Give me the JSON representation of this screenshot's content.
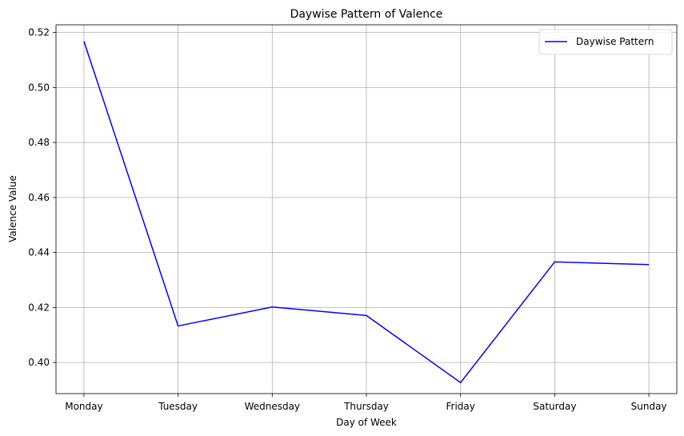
{
  "chart_data": {
    "type": "line",
    "title": "Daywise Pattern of Valence",
    "xlabel": "Day of Week",
    "ylabel": "Valence Value",
    "categories": [
      "Monday",
      "Tuesday",
      "Wednesday",
      "Thursday",
      "Friday",
      "Saturday",
      "Sunday"
    ],
    "series": [
      {
        "name": "Daywise Pattern",
        "color": "#0000ff",
        "values": [
          0.5168,
          0.4133,
          0.4202,
          0.4171,
          0.3927,
          0.4366,
          0.4356
        ]
      }
    ],
    "ylim": [
      0.3887,
      0.5228
    ],
    "yticks": [
      0.4,
      0.42,
      0.44,
      0.46,
      0.48,
      0.5,
      0.52
    ],
    "ytick_labels": [
      "0.40",
      "0.42",
      "0.44",
      "0.46",
      "0.48",
      "0.50",
      "0.52"
    ],
    "grid": true,
    "legend_position": "top-right"
  }
}
